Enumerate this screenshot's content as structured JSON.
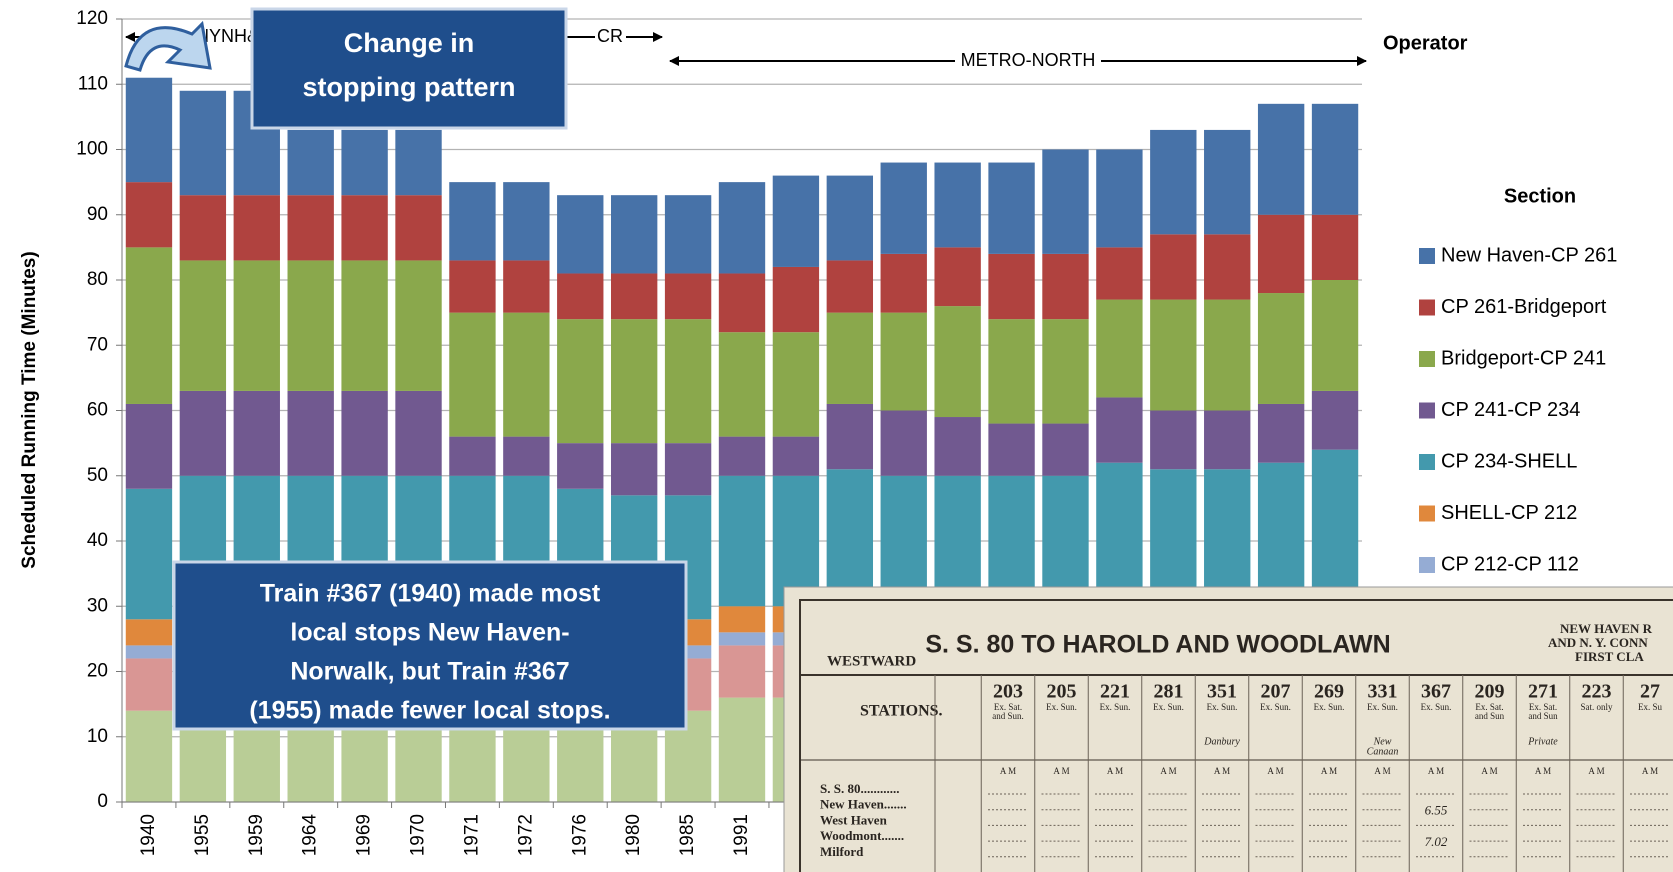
{
  "chart_data": {
    "type": "stacked_bar",
    "y_label": "Scheduled Running Time (Minutes)",
    "categories": [
      "1940",
      "1955",
      "1959",
      "1964",
      "1969",
      "1970",
      "1971",
      "1972",
      "1976",
      "1980",
      "1985",
      "1991",
      null,
      null,
      null,
      null,
      null,
      null,
      null,
      null,
      null,
      null,
      null
    ],
    "series": [
      {
        "color": "#b9cd96",
        "values": [
          14,
          14,
          14,
          14,
          14,
          14,
          14,
          14,
          14,
          14,
          14,
          16,
          16,
          16,
          16,
          16,
          16,
          16,
          16,
          16,
          16,
          16,
          16
        ]
      },
      {
        "color": "#d99694",
        "values": [
          8,
          8,
          8,
          8,
          8,
          8,
          8,
          8,
          8,
          8,
          8,
          8,
          8,
          8,
          8,
          8,
          8,
          8,
          8,
          8,
          8,
          8,
          8
        ]
      },
      {
        "name": "CP 212-CP 112",
        "color": "#95acd4",
        "values": [
          2,
          2,
          2,
          2,
          2,
          2,
          2,
          2,
          2,
          2,
          2,
          2,
          2,
          2,
          2,
          2,
          2,
          2,
          2,
          2,
          2,
          2,
          2
        ]
      },
      {
        "name": "SHELL-CP 212",
        "color": "#e0883c",
        "values": [
          4,
          4,
          4,
          4,
          4,
          4,
          4,
          4,
          4,
          4,
          4,
          4,
          4,
          4,
          4,
          4,
          4,
          4,
          4,
          4,
          4,
          4,
          4
        ]
      },
      {
        "name": "CP 234-SHELL",
        "color": "#4399ad",
        "values": [
          20,
          22,
          22,
          22,
          22,
          22,
          22,
          22,
          20,
          19,
          19,
          20,
          20,
          21,
          20,
          20,
          20,
          20,
          22,
          21,
          21,
          22,
          24
        ]
      },
      {
        "name": "CP 241-CP 234",
        "color": "#715990",
        "values": [
          13,
          13,
          13,
          13,
          13,
          13,
          6,
          6,
          7,
          8,
          8,
          6,
          6,
          10,
          10,
          9,
          8,
          8,
          10,
          9,
          9,
          9,
          9
        ]
      },
      {
        "name": "Bridgeport-CP 241",
        "color": "#8aa84c",
        "values": [
          24,
          20,
          20,
          20,
          20,
          20,
          19,
          19,
          19,
          19,
          19,
          16,
          16,
          14,
          15,
          17,
          16,
          16,
          15,
          17,
          17,
          17,
          17
        ]
      },
      {
        "name": "CP 261-Bridgeport",
        "color": "#b0423f",
        "values": [
          10,
          10,
          10,
          10,
          10,
          10,
          8,
          8,
          7,
          7,
          7,
          9,
          10,
          8,
          9,
          9,
          10,
          10,
          8,
          10,
          10,
          12,
          10
        ]
      },
      {
        "name": "New Haven-CP 261",
        "color": "#4772a8",
        "values": [
          16,
          16,
          16,
          10,
          10,
          10,
          12,
          12,
          12,
          12,
          12,
          14,
          14,
          13,
          14,
          13,
          14,
          16,
          15,
          16,
          16,
          17,
          17
        ]
      }
    ],
    "ylim": [
      0,
      120
    ],
    "yticks": [
      0,
      10,
      20,
      30,
      40,
      50,
      60,
      70,
      80,
      90,
      100,
      110,
      120
    ],
    "grid": true,
    "legend_title": "Section",
    "legend_position": "right",
    "operators": [
      "NYNH&H",
      "CR",
      "METRO-NORTH"
    ],
    "operator_label": "Operator",
    "annotations": [
      [
        "Change in",
        "stopping pattern"
      ],
      [
        "Train #367 (1940) made most",
        "local stops New Haven-",
        "Norwalk, but Train #367",
        "(1955) made fewer local stops."
      ]
    ]
  },
  "timetable": {
    "direction": "WESTWARD",
    "title": "S. S. 80 TO HAROLD AND WOODLAWN",
    "heading": [
      "NEW HAVEN R",
      "AND N. Y. CONN",
      "FIRST CLA"
    ],
    "stations_header": "STATIONS.",
    "period": "A M",
    "trains": [
      {
        "number": "203",
        "days": [
          "Ex. Sat.",
          "and Sun."
        ]
      },
      {
        "number": "205",
        "days": [
          "Ex. Sun."
        ]
      },
      {
        "number": "221",
        "days": [
          "Ex. Sun."
        ]
      },
      {
        "number": "281",
        "days": [
          "Ex. Sun."
        ]
      },
      {
        "number": "351",
        "days": [
          "Ex. Sun."
        ],
        "via": [
          "Danbury"
        ]
      },
      {
        "number": "207",
        "days": [
          "Ex. Sun."
        ]
      },
      {
        "number": "269",
        "days": [
          "Ex. Sun."
        ]
      },
      {
        "number": "331",
        "days": [
          "Ex. Sun."
        ],
        "via": [
          "New",
          "Canaan"
        ]
      },
      {
        "number": "367",
        "days": [
          "Ex. Sun."
        ],
        "times": [
          null,
          "6.55",
          null,
          "7.02",
          null
        ]
      },
      {
        "number": "209",
        "days": [
          "Ex. Sat.",
          "and Sun"
        ]
      },
      {
        "number": "271",
        "days": [
          "Ex. Sat.",
          "and Sun"
        ],
        "via": [
          "Private"
        ]
      },
      {
        "number": "223",
        "days": [
          "Sat. only"
        ]
      },
      {
        "number": "27",
        "days": [
          "Ex. Su"
        ]
      }
    ],
    "stations": [
      "S. S. 80............",
      "New Haven.......",
      "West Haven",
      "Woodmont.......",
      "Milford"
    ]
  }
}
